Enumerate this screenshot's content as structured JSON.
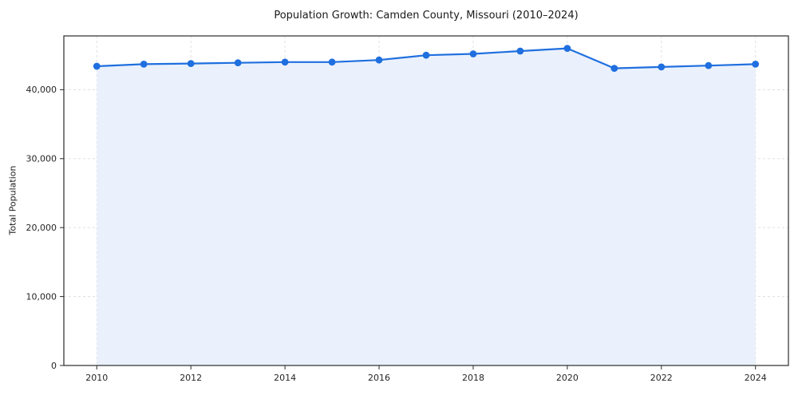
{
  "chart_data": {
    "type": "line",
    "title": "Population Growth: Camden County, Missouri (2010–2024)",
    "xlabel": "",
    "ylabel": "Total Population",
    "x": [
      2010,
      2011,
      2012,
      2013,
      2014,
      2015,
      2016,
      2017,
      2018,
      2019,
      2020,
      2021,
      2022,
      2023,
      2024
    ],
    "series": [
      {
        "name": "Total Population",
        "values": [
          43400,
          43700,
          43800,
          43900,
          44000,
          44000,
          44300,
          45000,
          45200,
          45600,
          46000,
          43100,
          43300,
          43500,
          43700
        ]
      }
    ],
    "xticks": [
      2010,
      2012,
      2014,
      2016,
      2018,
      2020,
      2022,
      2024
    ],
    "yticks": [
      0,
      10000,
      20000,
      30000,
      40000
    ],
    "xlim": [
      2009.3,
      2024.7
    ],
    "ylim": [
      0,
      47800
    ],
    "grid": true,
    "legend_position": "none",
    "colors": {
      "line": "#1f6fdf",
      "marker": "#1f6fdf",
      "fill": "#e8f0fc",
      "grid": "#dcdcdc",
      "spine": "#2b2b2b",
      "background": "#ffffff"
    }
  }
}
